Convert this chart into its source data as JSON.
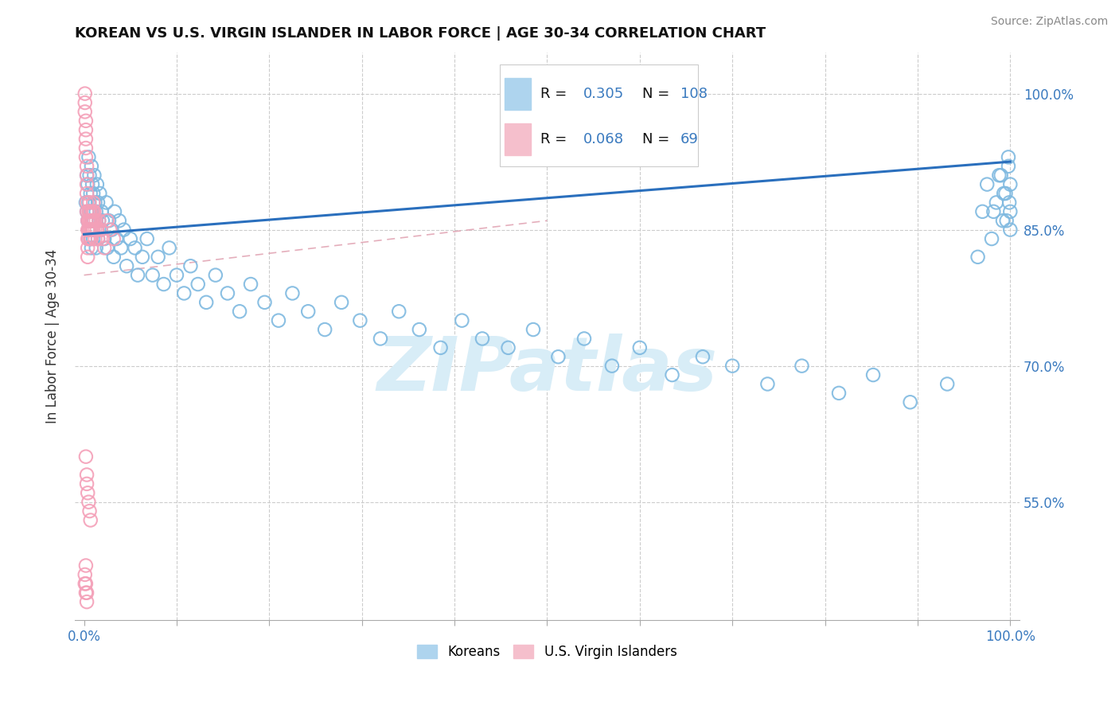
{
  "title": "KOREAN VS U.S. VIRGIN ISLANDER IN LABOR FORCE | AGE 30-34 CORRELATION CHART",
  "source": "Source: ZipAtlas.com",
  "ylabel": "In Labor Force | Age 30-34",
  "yticks": [
    "55.0%",
    "70.0%",
    "85.0%",
    "100.0%"
  ],
  "ytick_vals": [
    0.55,
    0.7,
    0.85,
    1.0
  ],
  "ylim": [
    0.42,
    1.045
  ],
  "xlim": [
    -0.01,
    1.01
  ],
  "blue_color": "#7fb9e0",
  "pink_color": "#f4a0b8",
  "trend_blue_color": "#2a6fbd",
  "trend_pink_color": "#e8b0b8",
  "watermark_color": "#d8edf7",
  "watermark_text": "ZIPatlas",
  "blue_trend_start": 0.845,
  "blue_trend_end": 0.925,
  "pink_trend_start_x": 0.0,
  "pink_trend_start_y": 0.8,
  "pink_trend_end_x": 0.5,
  "pink_trend_end_y": 0.92,
  "blue_x": [
    0.002,
    0.003,
    0.003,
    0.004,
    0.004,
    0.005,
    0.005,
    0.005,
    0.006,
    0.006,
    0.007,
    0.007,
    0.008,
    0.008,
    0.008,
    0.009,
    0.009,
    0.01,
    0.01,
    0.011,
    0.011,
    0.012,
    0.013,
    0.013,
    0.014,
    0.015,
    0.015,
    0.016,
    0.017,
    0.018,
    0.019,
    0.02,
    0.022,
    0.024,
    0.025,
    0.027,
    0.03,
    0.032,
    0.033,
    0.035,
    0.038,
    0.04,
    0.043,
    0.046,
    0.05,
    0.055,
    0.058,
    0.063,
    0.068,
    0.074,
    0.08,
    0.086,
    0.092,
    0.1,
    0.108,
    0.115,
    0.123,
    0.132,
    0.142,
    0.155,
    0.168,
    0.18,
    0.195,
    0.21,
    0.225,
    0.242,
    0.26,
    0.278,
    0.298,
    0.32,
    0.34,
    0.362,
    0.385,
    0.408,
    0.43,
    0.458,
    0.485,
    0.512,
    0.54,
    0.57,
    0.6,
    0.635,
    0.668,
    0.7,
    0.738,
    0.775,
    0.815,
    0.852,
    0.892,
    0.932,
    0.965,
    0.982,
    0.99,
    0.993,
    0.996,
    0.998,
    0.999,
    1.0,
    1.0,
    1.0,
    0.998,
    0.995,
    0.992,
    0.988,
    0.985,
    0.98,
    0.975,
    0.97
  ],
  "blue_y": [
    0.88,
    0.91,
    0.87,
    0.9,
    0.86,
    0.93,
    0.88,
    0.85,
    0.91,
    0.87,
    0.89,
    0.84,
    0.92,
    0.87,
    0.83,
    0.9,
    0.86,
    0.89,
    0.84,
    0.91,
    0.86,
    0.88,
    0.87,
    0.83,
    0.9,
    0.88,
    0.84,
    0.86,
    0.89,
    0.85,
    0.87,
    0.86,
    0.84,
    0.88,
    0.83,
    0.86,
    0.85,
    0.82,
    0.87,
    0.84,
    0.86,
    0.83,
    0.85,
    0.81,
    0.84,
    0.83,
    0.8,
    0.82,
    0.84,
    0.8,
    0.82,
    0.79,
    0.83,
    0.8,
    0.78,
    0.81,
    0.79,
    0.77,
    0.8,
    0.78,
    0.76,
    0.79,
    0.77,
    0.75,
    0.78,
    0.76,
    0.74,
    0.77,
    0.75,
    0.73,
    0.76,
    0.74,
    0.72,
    0.75,
    0.73,
    0.72,
    0.74,
    0.71,
    0.73,
    0.7,
    0.72,
    0.69,
    0.71,
    0.7,
    0.68,
    0.7,
    0.67,
    0.69,
    0.66,
    0.68,
    0.82,
    0.87,
    0.91,
    0.89,
    0.86,
    0.92,
    0.88,
    0.85,
    0.9,
    0.87,
    0.93,
    0.89,
    0.86,
    0.91,
    0.88,
    0.84,
    0.9,
    0.87
  ],
  "pink_x": [
    0.001,
    0.001,
    0.001,
    0.002,
    0.002,
    0.002,
    0.002,
    0.002,
    0.003,
    0.003,
    0.003,
    0.003,
    0.003,
    0.003,
    0.004,
    0.004,
    0.004,
    0.004,
    0.004,
    0.005,
    0.005,
    0.005,
    0.005,
    0.006,
    0.006,
    0.006,
    0.006,
    0.007,
    0.007,
    0.007,
    0.007,
    0.008,
    0.008,
    0.008,
    0.009,
    0.009,
    0.009,
    0.01,
    0.01,
    0.01,
    0.01,
    0.011,
    0.011,
    0.012,
    0.012,
    0.013,
    0.014,
    0.015,
    0.016,
    0.018,
    0.02,
    0.022,
    0.025,
    0.028,
    0.032,
    0.002,
    0.003,
    0.003,
    0.004,
    0.005,
    0.006,
    0.007,
    0.001,
    0.002,
    0.003,
    0.002,
    0.001,
    0.002,
    0.003
  ],
  "pink_y": [
    1.0,
    0.99,
    0.98,
    0.97,
    0.96,
    0.95,
    0.94,
    0.93,
    0.92,
    0.91,
    0.9,
    0.89,
    0.88,
    0.87,
    0.86,
    0.85,
    0.84,
    0.83,
    0.82,
    0.87,
    0.86,
    0.85,
    0.84,
    0.88,
    0.87,
    0.86,
    0.85,
    0.87,
    0.86,
    0.85,
    0.84,
    0.86,
    0.85,
    0.84,
    0.87,
    0.86,
    0.85,
    0.88,
    0.87,
    0.86,
    0.85,
    0.87,
    0.86,
    0.85,
    0.84,
    0.86,
    0.85,
    0.84,
    0.86,
    0.85,
    0.84,
    0.83,
    0.86,
    0.85,
    0.84,
    0.6,
    0.58,
    0.57,
    0.56,
    0.55,
    0.54,
    0.53,
    0.47,
    0.46,
    0.45,
    0.48,
    0.46,
    0.45,
    0.44
  ]
}
